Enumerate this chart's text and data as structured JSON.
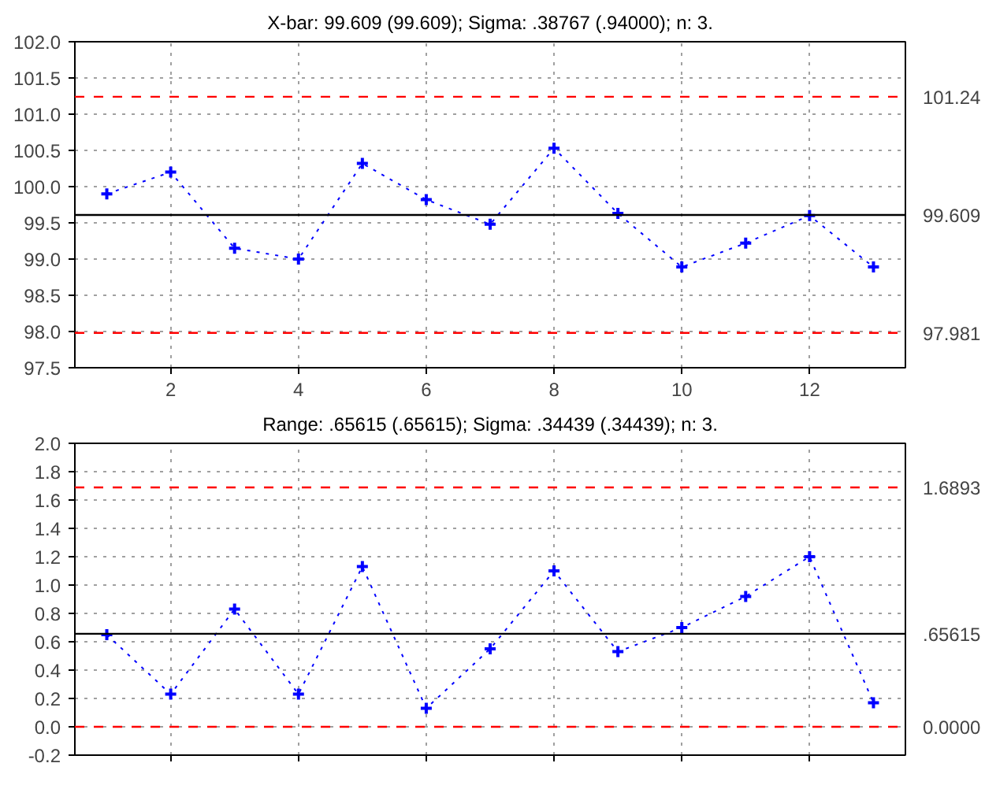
{
  "chart_data": [
    {
      "type": "line",
      "title": "X-bar: 99.609 (99.609); Sigma: .38767 (.94000); n: 3.",
      "x": [
        1,
        2,
        3,
        4,
        5,
        6,
        7,
        8,
        9,
        10,
        11,
        12,
        13
      ],
      "series": [
        {
          "color": "#0000ff",
          "values": [
            99.9,
            100.2,
            99.15,
            99.0,
            100.32,
            99.82,
            99.48,
            100.53,
            99.63,
            98.89,
            99.22,
            99.6,
            98.89
          ]
        }
      ],
      "xlim": [
        0.5,
        13.5
      ],
      "xticks": [
        2,
        4,
        6,
        8,
        10,
        12
      ],
      "ylim": [
        97.5,
        102.0
      ],
      "yticks": [
        {
          "value": 97.5,
          "label": "97.5"
        },
        {
          "value": 98,
          "label": "98.0"
        },
        {
          "value": 98.5,
          "label": "98.5"
        },
        {
          "value": 99,
          "label": "99.0"
        },
        {
          "value": 99.5,
          "label": "99.5"
        },
        {
          "value": 100,
          "label": "100.0"
        },
        {
          "value": 100.5,
          "label": "100.5"
        },
        {
          "value": 101,
          "label": "101.0"
        },
        {
          "value": 101.5,
          "label": "101.5"
        },
        {
          "value": 102,
          "label": "102.0"
        }
      ],
      "ref_lines": [
        {
          "axis": "y",
          "value": 101.24,
          "label": "101.24",
          "color": "#ff0000",
          "line_style": "dashed"
        },
        {
          "axis": "y",
          "value": 99.609,
          "label": "99.609",
          "color": "#000000",
          "line_style": "solid"
        },
        {
          "axis": "y",
          "value": 97.981,
          "label": "97.981",
          "color": "#ff0000",
          "line_style": "dashed"
        }
      ],
      "grid": true,
      "marker": "cross",
      "line_style": "dotted"
    },
    {
      "type": "line",
      "title": "Range: .65615 (.65615); Sigma: .34439 (.34439); n: 3.",
      "x": [
        1,
        2,
        3,
        4,
        5,
        6,
        7,
        8,
        9,
        10,
        11,
        12,
        13
      ],
      "series": [
        {
          "color": "#0000ff",
          "values": [
            0.65,
            0.23,
            0.83,
            0.23,
            1.13,
            0.13,
            0.55,
            1.1,
            0.53,
            0.7,
            0.92,
            1.2,
            0.17
          ]
        }
      ],
      "xlim": [
        0.5,
        13.5
      ],
      "xticks": [
        2,
        4,
        6,
        8,
        10,
        12
      ],
      "ylim": [
        -0.2,
        2.0
      ],
      "yticks": [
        {
          "value": -0.2,
          "label": "-0.2"
        },
        {
          "value": 0,
          "label": "0.0"
        },
        {
          "value": 0.2,
          "label": "0.2"
        },
        {
          "value": 0.4,
          "label": "0.4"
        },
        {
          "value": 0.6,
          "label": "0.6"
        },
        {
          "value": 0.8,
          "label": "0.8"
        },
        {
          "value": 1.0,
          "label": "1.0"
        },
        {
          "value": 1.2,
          "label": "1.2"
        },
        {
          "value": 1.4,
          "label": "1.4"
        },
        {
          "value": 1.6,
          "label": "1.6"
        },
        {
          "value": 1.8,
          "label": "1.8"
        },
        {
          "value": 2.0,
          "label": "2.0"
        }
      ],
      "ref_lines": [
        {
          "axis": "y",
          "value": 1.6893,
          "label": "1.6893",
          "color": "#ff0000",
          "line_style": "dashed"
        },
        {
          "axis": "y",
          "value": 0.65615,
          "label": ".65615",
          "color": "#000000",
          "line_style": "solid"
        },
        {
          "axis": "y",
          "value": 0.0,
          "label": "0.0000",
          "color": "#ff0000",
          "line_style": "dashed"
        }
      ],
      "grid": true,
      "marker": "cross",
      "line_style": "dotted",
      "tick_labels": "y"
    }
  ]
}
